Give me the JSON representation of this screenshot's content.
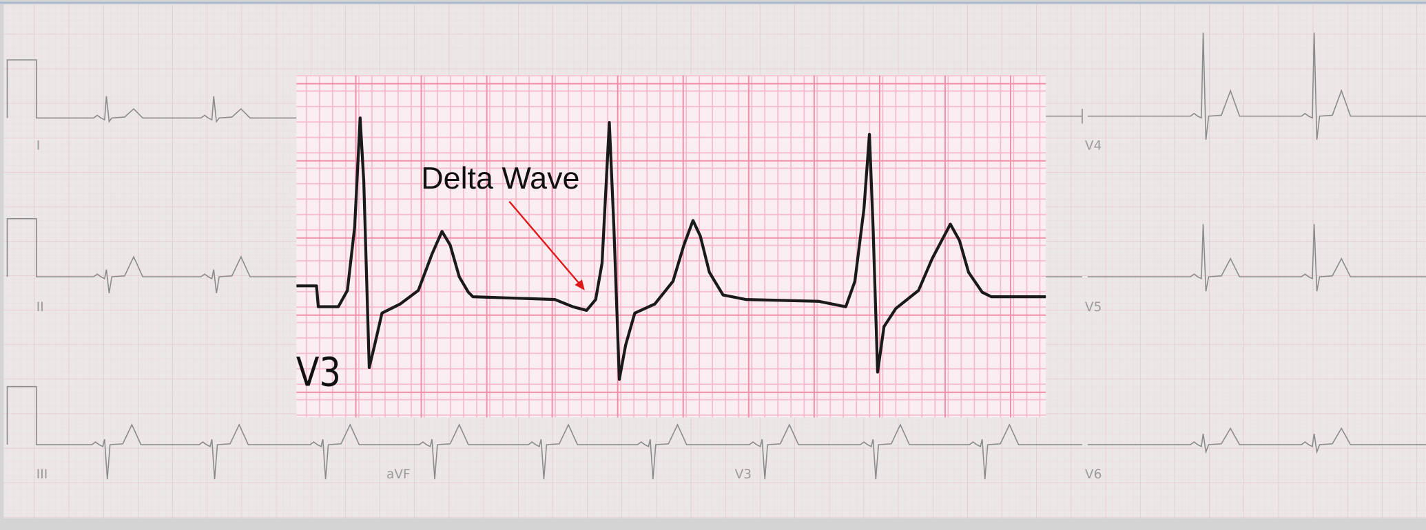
{
  "annotation": "Delta Wave",
  "inset_label": "V3",
  "leads": [
    {
      "label": "I"
    },
    {
      "label": "II"
    },
    {
      "label": "III"
    },
    {
      "label": "aVF"
    },
    {
      "label": "V3"
    },
    {
      "label": "V4"
    },
    {
      "label": "V5"
    },
    {
      "label": "V6"
    }
  ]
}
